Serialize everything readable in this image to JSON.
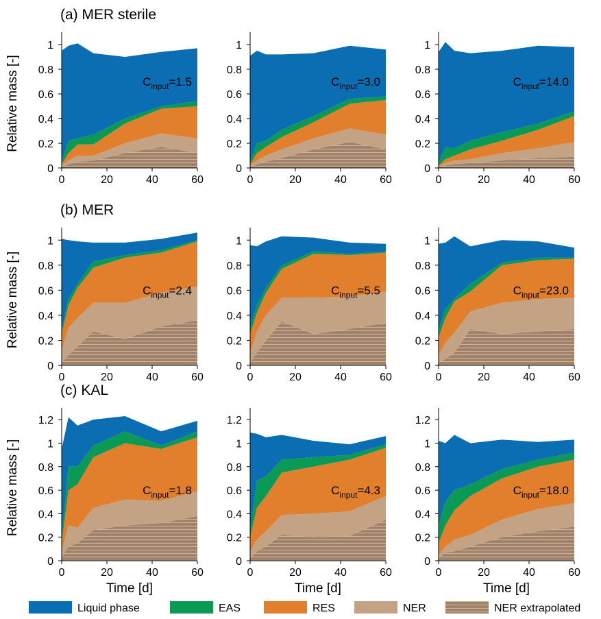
{
  "chart_data": [
    {
      "type": "area",
      "title": "(a) MER sterile",
      "ylabel": "Relative mass [-]",
      "annotation": {
        "text": "C",
        "subscript": "input",
        "suffix": "=1.5"
      },
      "x": [
        0,
        3,
        7,
        14,
        28,
        44,
        60
      ],
      "xlim": [
        0,
        60
      ],
      "xticks": [
        0,
        20,
        40,
        60
      ],
      "ylim": [
        0,
        1.1
      ],
      "yticks": [
        0,
        0.2,
        0.4,
        0.6,
        0.8,
        1
      ],
      "series": [
        {
          "name": "Liquid phase",
          "color": "#0b6db2",
          "values": [
            0.9,
            0.77,
            0.77,
            0.66,
            0.5,
            0.44,
            0.43
          ]
        },
        {
          "name": "EAS",
          "color": "#0a9a55",
          "values": [
            0.02,
            0.1,
            0.05,
            0.08,
            0.04,
            0.02,
            0.04
          ]
        },
        {
          "name": "RES",
          "color": "#e17f2c",
          "values": [
            0.01,
            0.06,
            0.09,
            0.09,
            0.16,
            0.2,
            0.26
          ]
        },
        {
          "name": "NER",
          "color": "#c4a384",
          "values": [
            0.01,
            0.03,
            0.05,
            0.04,
            0.08,
            0.11,
            0.12
          ]
        },
        {
          "name": "NER extrapolated",
          "color": "#a58a72",
          "hatch": "horizontal",
          "values": [
            0.01,
            0.03,
            0.05,
            0.06,
            0.12,
            0.17,
            0.12
          ]
        }
      ]
    },
    {
      "type": "area",
      "annotation": {
        "text": "C",
        "subscript": "input",
        "suffix": "=3.0"
      },
      "x": [
        0,
        3,
        7,
        14,
        28,
        44,
        60
      ],
      "xlim": [
        0,
        60
      ],
      "xticks": [
        0,
        20,
        40,
        60
      ],
      "ylim": [
        0,
        1.1
      ],
      "yticks": [
        0,
        0.2,
        0.4,
        0.6,
        0.8,
        1
      ],
      "series": [
        {
          "values": [
            0.86,
            0.75,
            0.7,
            0.61,
            0.51,
            0.43,
            0.38
          ]
        },
        {
          "values": [
            0.02,
            0.08,
            0.05,
            0.06,
            0.05,
            0.04,
            0.03
          ]
        },
        {
          "values": [
            0.01,
            0.06,
            0.07,
            0.1,
            0.13,
            0.2,
            0.28
          ]
        },
        {
          "values": [
            0.01,
            0.03,
            0.05,
            0.07,
            0.09,
            0.11,
            0.12
          ]
        },
        {
          "values": [
            0.01,
            0.03,
            0.05,
            0.08,
            0.15,
            0.21,
            0.15
          ]
        }
      ]
    },
    {
      "type": "area",
      "annotation": {
        "text": "C",
        "subscript": "input",
        "suffix": "=14.0"
      },
      "x": [
        0,
        3,
        7,
        14,
        28,
        44,
        60
      ],
      "xlim": [
        0,
        60
      ],
      "xticks": [
        0,
        20,
        40,
        60
      ],
      "ylim": [
        0,
        1.1
      ],
      "yticks": [
        0,
        0.2,
        0.4,
        0.6,
        0.8,
        1
      ],
      "series": [
        {
          "values": [
            0.9,
            0.85,
            0.79,
            0.71,
            0.66,
            0.63,
            0.52
          ]
        },
        {
          "values": [
            0.02,
            0.1,
            0.06,
            0.07,
            0.07,
            0.05,
            0.04
          ]
        },
        {
          "values": [
            0.01,
            0.03,
            0.04,
            0.08,
            0.1,
            0.15,
            0.21
          ]
        },
        {
          "values": [
            0,
            0.02,
            0.03,
            0.03,
            0.06,
            0.08,
            0.12
          ]
        },
        {
          "values": [
            0.01,
            0.02,
            0.03,
            0.04,
            0.06,
            0.08,
            0.09
          ]
        }
      ]
    },
    {
      "type": "area",
      "title": "(b) MER",
      "ylabel": "Relative mass [-]",
      "annotation": {
        "text": "C",
        "subscript": "input",
        "suffix": "=2.4"
      },
      "x": [
        0,
        3,
        7,
        14,
        28,
        44,
        60
      ],
      "xlim": [
        0,
        60
      ],
      "xticks": [
        0,
        20,
        40,
        60
      ],
      "ylim": [
        0,
        1.1
      ],
      "yticks": [
        0,
        0.2,
        0.4,
        0.6,
        0.8,
        1
      ],
      "series": [
        {
          "values": [
            0.73,
            0.47,
            0.34,
            0.15,
            0.1,
            0.09,
            0.06
          ]
        },
        {
          "values": [
            0.03,
            0.05,
            0.03,
            0.05,
            0.02,
            0.02,
            0.01
          ]
        },
        {
          "values": [
            0.13,
            0.18,
            0.24,
            0.28,
            0.36,
            0.32,
            0.36
          ]
        },
        {
          "values": [
            0.1,
            0.22,
            0.23,
            0.23,
            0.29,
            0.27,
            0.27
          ]
        },
        {
          "values": [
            0.02,
            0.08,
            0.15,
            0.27,
            0.21,
            0.31,
            0.36
          ]
        }
      ]
    },
    {
      "type": "area",
      "annotation": {
        "text": "C",
        "subscript": "input",
        "suffix": "=5.5"
      },
      "x": [
        0,
        3,
        7,
        14,
        28,
        44,
        60
      ],
      "xlim": [
        0,
        60
      ],
      "xticks": [
        0,
        20,
        40,
        60
      ],
      "ylim": [
        0,
        1.1
      ],
      "yticks": [
        0,
        0.2,
        0.4,
        0.6,
        0.8,
        1
      ],
      "series": [
        {
          "values": [
            0.66,
            0.47,
            0.37,
            0.23,
            0.11,
            0.09,
            0.06
          ]
        },
        {
          "values": [
            0.05,
            0.06,
            0.04,
            0.03,
            0.02,
            0.01,
            0.01
          ]
        },
        {
          "values": [
            0.15,
            0.15,
            0.18,
            0.23,
            0.35,
            0.33,
            0.31
          ]
        },
        {
          "values": [
            0.08,
            0.17,
            0.2,
            0.19,
            0.29,
            0.26,
            0.25
          ]
        },
        {
          "values": [
            0.02,
            0.1,
            0.2,
            0.35,
            0.25,
            0.29,
            0.34
          ]
        }
      ]
    },
    {
      "type": "area",
      "annotation": {
        "text": "C",
        "subscript": "input",
        "suffix": "=23.0"
      },
      "x": [
        0,
        3,
        7,
        14,
        28,
        44,
        60
      ],
      "xlim": [
        0,
        60
      ],
      "xticks": [
        0,
        20,
        40,
        60
      ],
      "ylim": [
        0,
        1.1
      ],
      "yticks": [
        0,
        0.2,
        0.4,
        0.6,
        0.8,
        1
      ],
      "series": [
        {
          "values": [
            0.69,
            0.53,
            0.5,
            0.3,
            0.18,
            0.13,
            0.08
          ]
        },
        {
          "values": [
            0.06,
            0.07,
            0.02,
            0.06,
            0.02,
            0.02,
            0.01
          ]
        },
        {
          "values": [
            0.14,
            0.2,
            0.25,
            0.16,
            0.3,
            0.31,
            0.31
          ]
        },
        {
          "values": [
            0.06,
            0.13,
            0.16,
            0.14,
            0.25,
            0.26,
            0.25
          ]
        },
        {
          "values": [
            0.02,
            0.05,
            0.1,
            0.29,
            0.25,
            0.27,
            0.29
          ]
        }
      ]
    },
    {
      "type": "area",
      "title": "(c) KAL",
      "ylabel": "Relative mass [-]",
      "xlabel": "Time [d]",
      "annotation": {
        "text": "C",
        "subscript": "input",
        "suffix": "=1.8"
      },
      "x": [
        0,
        3,
        7,
        14,
        28,
        44,
        60
      ],
      "xlim": [
        0,
        60
      ],
      "xticks": [
        0,
        20,
        40,
        60
      ],
      "ylim": [
        0,
        1.3
      ],
      "yticks": [
        0,
        0.2,
        0.4,
        0.6,
        0.8,
        1,
        1.2
      ],
      "series": [
        {
          "values": [
            0.75,
            0.42,
            0.35,
            0.22,
            0.13,
            0.12,
            0.09
          ]
        },
        {
          "values": [
            0.05,
            0.2,
            0.15,
            0.1,
            0.1,
            0.03,
            0.05
          ]
        },
        {
          "values": [
            0.07,
            0.3,
            0.37,
            0.43,
            0.48,
            0.44,
            0.46
          ]
        },
        {
          "values": [
            0.05,
            0.18,
            0.13,
            0.19,
            0.22,
            0.19,
            0.21
          ]
        },
        {
          "values": [
            0.03,
            0.12,
            0.15,
            0.26,
            0.3,
            0.32,
            0.38
          ]
        }
      ]
    },
    {
      "type": "area",
      "xlabel": "Time [d]",
      "annotation": {
        "text": "C",
        "subscript": "input",
        "suffix": "=4.3"
      },
      "x": [
        0,
        3,
        7,
        14,
        28,
        44,
        60
      ],
      "xlim": [
        0,
        60
      ],
      "xticks": [
        0,
        20,
        40,
        60
      ],
      "ylim": [
        0,
        1.3
      ],
      "yticks": [
        0,
        0.2,
        0.4,
        0.6,
        0.8,
        1,
        1.2
      ],
      "series": [
        {
          "values": [
            0.84,
            0.4,
            0.33,
            0.21,
            0.14,
            0.09,
            0.07
          ]
        },
        {
          "values": [
            0.05,
            0.23,
            0.17,
            0.11,
            0.08,
            0.04,
            0.03
          ]
        },
        {
          "values": [
            0.12,
            0.27,
            0.3,
            0.36,
            0.4,
            0.44,
            0.41
          ]
        },
        {
          "values": [
            0.06,
            0.1,
            0.13,
            0.17,
            0.2,
            0.21,
            0.2
          ]
        },
        {
          "values": [
            0.02,
            0.08,
            0.12,
            0.22,
            0.2,
            0.21,
            0.35
          ]
        }
      ]
    },
    {
      "type": "area",
      "xlabel": "Time [d]",
      "annotation": {
        "text": "C",
        "subscript": "input",
        "suffix": "=18.0"
      },
      "x": [
        0,
        3,
        7,
        14,
        28,
        44,
        60
      ],
      "xlim": [
        0,
        60
      ],
      "xticks": [
        0,
        20,
        40,
        60
      ],
      "ylim": [
        0,
        1.3
      ],
      "yticks": [
        0,
        0.2,
        0.4,
        0.6,
        0.8,
        1,
        1.2
      ],
      "series": [
        {
          "values": [
            0.72,
            0.5,
            0.47,
            0.35,
            0.25,
            0.15,
            0.11
          ]
        },
        {
          "values": [
            0.15,
            0.2,
            0.17,
            0.1,
            0.08,
            0.06,
            0.06
          ]
        },
        {
          "values": [
            0.1,
            0.18,
            0.25,
            0.33,
            0.35,
            0.36,
            0.37
          ]
        },
        {
          "values": [
            0.03,
            0.05,
            0.1,
            0.1,
            0.15,
            0.19,
            0.2
          ]
        },
        {
          "values": [
            0.02,
            0.07,
            0.08,
            0.12,
            0.2,
            0.25,
            0.29
          ]
        }
      ]
    }
  ]
}
